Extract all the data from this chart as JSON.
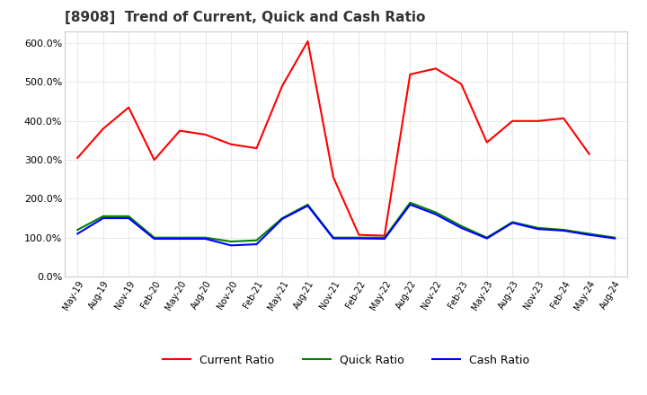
{
  "title": "[8908]  Trend of Current, Quick and Cash Ratio",
  "x_labels": [
    "May-19",
    "Aug-19",
    "Nov-19",
    "Feb-20",
    "May-20",
    "Aug-20",
    "Nov-20",
    "Feb-21",
    "May-21",
    "Aug-21",
    "Nov-21",
    "Feb-22",
    "May-22",
    "Aug-22",
    "Nov-22",
    "Feb-23",
    "May-23",
    "Aug-23",
    "Nov-23",
    "Feb-24",
    "May-24",
    "Aug-24"
  ],
  "current_ratio": [
    305,
    380,
    435,
    300,
    375,
    365,
    340,
    330,
    490,
    605,
    255,
    107,
    105,
    520,
    535,
    495,
    345,
    400,
    400,
    407,
    315,
    null
  ],
  "quick_ratio": [
    120,
    155,
    155,
    100,
    100,
    100,
    90,
    93,
    150,
    185,
    100,
    100,
    100,
    190,
    165,
    130,
    100,
    140,
    125,
    120,
    110,
    100
  ],
  "cash_ratio": [
    110,
    150,
    150,
    97,
    97,
    97,
    80,
    83,
    148,
    182,
    98,
    98,
    97,
    185,
    160,
    125,
    98,
    138,
    122,
    118,
    107,
    98
  ],
  "current_color": "#FF0000",
  "quick_color": "#008000",
  "cash_color": "#0000FF",
  "ylim": [
    0,
    630
  ],
  "yticks": [
    0,
    100,
    200,
    300,
    400,
    500,
    600
  ],
  "background_color": "#FFFFFF",
  "grid_color": "#BBBBBB",
  "title_fontsize": 11,
  "legend_labels": [
    "Current Ratio",
    "Quick Ratio",
    "Cash Ratio"
  ],
  "linewidth": 1.5,
  "tick_fontsize": 7
}
